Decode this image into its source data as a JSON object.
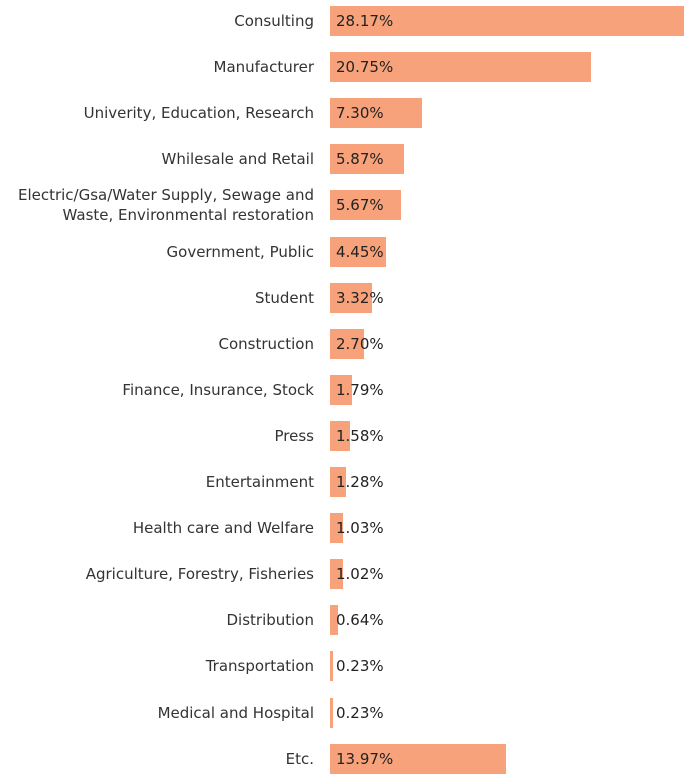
{
  "chart_data": {
    "type": "bar",
    "orientation": "horizontal",
    "bar_color": "#f7a27a",
    "categories": [
      "Consulting",
      "Manufacturer",
      "Univerity, Education, Research",
      "Whilesale and Retail",
      "Electric/Gsa/Water Supply, Sewage and\nWaste, Environmental restoration",
      "Government, Public",
      "Student",
      "Construction",
      "Finance, Insurance, Stock",
      "Press",
      "Entertainment",
      "Health care and Welfare",
      "Agriculture, Forestry, Fisheries",
      "Distribution",
      "Transportation",
      "Medical and Hospital",
      "Etc."
    ],
    "values": [
      28.17,
      20.75,
      7.3,
      5.87,
      5.67,
      4.45,
      3.32,
      2.7,
      1.79,
      1.58,
      1.28,
      1.03,
      1.02,
      0.64,
      0.23,
      0.23,
      13.97
    ],
    "value_labels": [
      "28.17%",
      "20.75%",
      "7.30%",
      "5.87%",
      "5.67%",
      "4.45%",
      "3.32%",
      "2.70%",
      "1.79%",
      "1.58%",
      "1.28%",
      "1.03%",
      "1.02%",
      "0.64%",
      "0.23%",
      "0.23%",
      "13.97%"
    ],
    "xlim": [
      0,
      28.17
    ]
  }
}
